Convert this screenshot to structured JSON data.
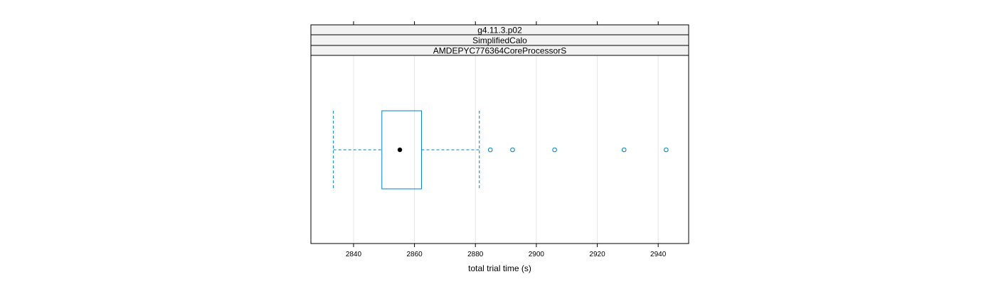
{
  "chart_data": {
    "type": "boxplot",
    "strips": [
      "g4.11.3.p02",
      "SimplifiedCalo",
      "AMDEPYC776364CoreProcessorS"
    ],
    "xlabel": "total trial time (s)",
    "xlim": [
      2826,
      2950
    ],
    "xticks": [
      2840,
      2860,
      2880,
      2900,
      2920,
      2940
    ],
    "grid": true,
    "box": {
      "whisker_low": 2833.4,
      "q1": 2849.3,
      "median": 2855.2,
      "q3": 2862.3,
      "whisker_high": 2881.3,
      "outliers": [
        2884.9,
        2892.2,
        2906.0,
        2928.8,
        2942.6
      ]
    },
    "colors": {
      "box": "#0080C0",
      "whisker": "#0080C0",
      "outlier": "#0080C0",
      "median": "#000000",
      "strip_bg": "#F2F2F2",
      "grid": "#E6E6E6",
      "frame": "#000000"
    }
  }
}
